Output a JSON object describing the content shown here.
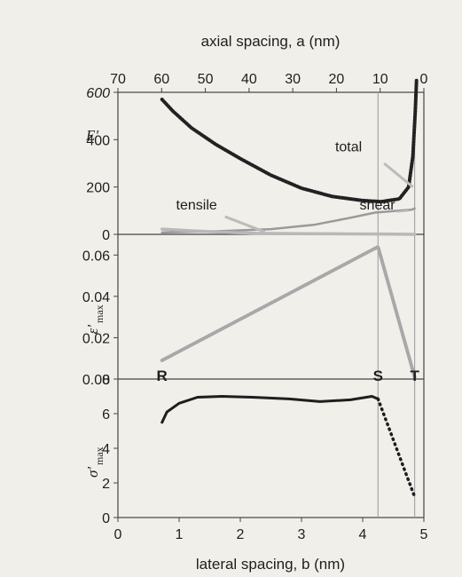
{
  "chart_data": {
    "type": "line",
    "axes": {
      "top": {
        "label": "axial spacing, a   (nm)",
        "ticks": [
          70,
          60,
          50,
          40,
          30,
          20,
          10,
          0
        ],
        "lim": [
          70,
          0
        ]
      },
      "bottom": {
        "label": "lateral spacing, b   (nm)",
        "ticks": [
          0,
          1,
          2,
          3,
          4,
          5
        ],
        "lim": [
          0,
          5
        ]
      }
    },
    "panels": [
      {
        "id": "energy",
        "ylabel": "E'",
        "ylim": [
          0,
          600
        ],
        "yticks": [
          0,
          200,
          400,
          600
        ],
        "ytick_labels": [
          "0",
          "200",
          "400",
          "600"
        ],
        "series": [
          {
            "name": "total",
            "color": "#222222",
            "style": "dotted-thick",
            "points": [
              [
                0.72,
                570
              ],
              [
                0.9,
                520
              ],
              [
                1.2,
                450
              ],
              [
                1.6,
                380
              ],
              [
                2.0,
                320
              ],
              [
                2.5,
                250
              ],
              [
                3.0,
                195
              ],
              [
                3.5,
                160
              ],
              [
                4.0,
                143
              ],
              [
                4.3,
                138
              ],
              [
                4.6,
                150
              ],
              [
                4.75,
                200
              ],
              [
                4.82,
                330
              ],
              [
                4.86,
                520
              ],
              [
                4.88,
                650
              ]
            ]
          },
          {
            "name": "shear",
            "color": "#9a9a9a",
            "style": "solid",
            "points": [
              [
                0.72,
                8
              ],
              [
                1.5,
                12
              ],
              [
                2.5,
                22
              ],
              [
                3.2,
                40
              ],
              [
                3.8,
                70
              ],
              [
                4.2,
                92
              ],
              [
                4.6,
                100
              ],
              [
                4.8,
                104
              ],
              [
                4.85,
                110
              ]
            ]
          },
          {
            "name": "tensile",
            "color": "#b8b8b8",
            "style": "solid",
            "points": [
              [
                0.72,
                22
              ],
              [
                1.2,
                15
              ],
              [
                1.8,
                8
              ],
              [
                2.3,
                4
              ],
              [
                3.0,
                3
              ],
              [
                3.8,
                2
              ],
              [
                4.5,
                1
              ],
              [
                4.85,
                0
              ]
            ]
          }
        ],
        "annotations": [
          {
            "text": "total",
            "x": 3.55,
            "y": 350
          },
          {
            "text": "tensile",
            "x": 0.95,
            "y": 105
          },
          {
            "text": "shear",
            "x": 3.95,
            "y": 105
          }
        ]
      },
      {
        "id": "strain",
        "ylabel": "ε'",
        "ylabel_sub": "max",
        "ylim": [
          0,
          0.07
        ],
        "yticks": [
          0.0,
          0.02,
          0.04,
          0.06
        ],
        "ytick_labels": [
          "0.00",
          "0.02",
          "0.04",
          "0.06"
        ],
        "series": [
          {
            "name": "",
            "color": "#a8a8a8",
            "style": "dotted-thick",
            "points": [
              [
                0.72,
                0.009
              ],
              [
                4.25,
                0.064
              ],
              [
                4.85,
                0.001
              ]
            ]
          }
        ]
      },
      {
        "id": "stress",
        "ylabel": "σ'",
        "ylabel_sub": "max",
        "ylim": [
          0,
          8
        ],
        "yticks": [
          0,
          2,
          4,
          6,
          8
        ],
        "ytick_labels": [
          "0",
          "2",
          "4",
          "6",
          "8"
        ],
        "series": [
          {
            "name": "",
            "color": "#1e1e1e",
            "style": "solid",
            "points": [
              [
                0.72,
                5.5
              ],
              [
                0.8,
                6.1
              ],
              [
                1.0,
                6.6
              ],
              [
                1.3,
                6.95
              ],
              [
                1.7,
                7.0
              ],
              [
                2.2,
                6.95
              ],
              [
                2.8,
                6.85
              ],
              [
                3.3,
                6.7
              ],
              [
                3.8,
                6.8
              ],
              [
                4.15,
                7.0
              ],
              [
                4.25,
                6.85
              ]
            ]
          },
          {
            "name": "",
            "color": "#1e1e1e",
            "style": "dotted",
            "points": [
              [
                4.25,
                6.85
              ],
              [
                4.5,
                4.5
              ],
              [
                4.7,
                2.6
              ],
              [
                4.85,
                1.2
              ]
            ]
          }
        ],
        "markers": [
          {
            "text": "R",
            "x": 0.72,
            "y": 7.9
          },
          {
            "text": "S",
            "x": 4.25,
            "y": 7.9
          },
          {
            "text": "T",
            "x": 4.85,
            "y": 7.9
          }
        ]
      }
    ],
    "vlines": [
      4.25,
      4.85
    ],
    "grid": false,
    "legend": "none"
  }
}
